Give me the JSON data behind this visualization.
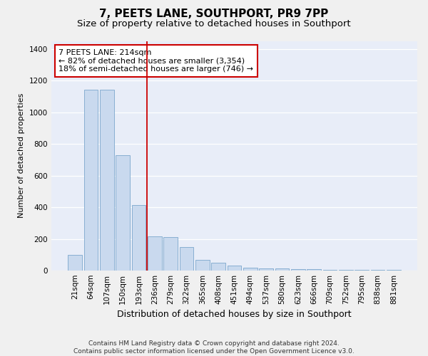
{
  "title": "7, PEETS LANE, SOUTHPORT, PR9 7PP",
  "subtitle": "Size of property relative to detached houses in Southport",
  "xlabel": "Distribution of detached houses by size in Southport",
  "ylabel": "Number of detached properties",
  "categories": [
    "21sqm",
    "64sqm",
    "107sqm",
    "150sqm",
    "193sqm",
    "236sqm",
    "279sqm",
    "322sqm",
    "365sqm",
    "408sqm",
    "451sqm",
    "494sqm",
    "537sqm",
    "580sqm",
    "623sqm",
    "666sqm",
    "709sqm",
    "752sqm",
    "795sqm",
    "838sqm",
    "881sqm"
  ],
  "values": [
    100,
    1140,
    1140,
    730,
    415,
    215,
    210,
    150,
    68,
    50,
    32,
    20,
    15,
    15,
    10,
    10,
    5,
    5,
    5,
    5,
    5
  ],
  "bar_color": "#c9d9ee",
  "bar_edge_color": "#7ba7cc",
  "vline_x_index": 4.5,
  "vline_color": "#cc0000",
  "annotation_text": "7 PEETS LANE: 214sqm\n← 82% of detached houses are smaller (3,354)\n18% of semi-detached houses are larger (746) →",
  "annotation_box_color": "#ffffff",
  "annotation_box_edge": "#cc0000",
  "ylim": [
    0,
    1450
  ],
  "yticks": [
    0,
    200,
    400,
    600,
    800,
    1000,
    1200,
    1400
  ],
  "plot_bg": "#e8edf8",
  "fig_bg": "#f0f0f0",
  "grid_color": "#ffffff",
  "footer": "Contains HM Land Registry data © Crown copyright and database right 2024.\nContains public sector information licensed under the Open Government Licence v3.0.",
  "title_fontsize": 11,
  "subtitle_fontsize": 9.5,
  "ylabel_fontsize": 8,
  "xlabel_fontsize": 9,
  "annotation_fontsize": 8,
  "tick_fontsize": 7.5,
  "footer_fontsize": 6.5
}
